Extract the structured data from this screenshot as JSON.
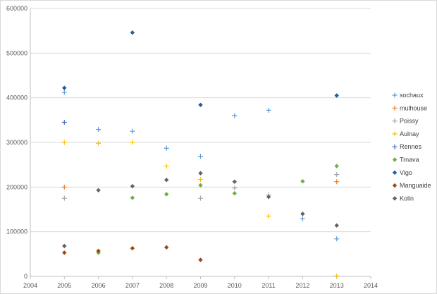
{
  "chart_data": {
    "type": "scatter",
    "title": "",
    "xlabel": "",
    "ylabel": "",
    "xlim": [
      2004,
      2014
    ],
    "ylim": [
      0,
      600000
    ],
    "x_ticks": [
      "2004",
      "2005",
      "2006",
      "2007",
      "2008",
      "2009",
      "2010",
      "2011",
      "2012",
      "2013",
      "2014"
    ],
    "y_ticks": [
      "0",
      "100000",
      "200000",
      "300000",
      "400000",
      "500000",
      "600000"
    ],
    "grid": "horizontal",
    "legend": "right",
    "series": [
      {
        "name": "sochaux",
        "marker": "plus",
        "color": "#5b9bd5",
        "points": [
          [
            2005,
            412000
          ],
          [
            2006,
            329000
          ],
          [
            2007,
            325000
          ],
          [
            2008,
            287000
          ],
          [
            2009,
            269000
          ],
          [
            2010,
            360000
          ],
          [
            2011,
            372000
          ],
          [
            2012,
            129000
          ],
          [
            2013,
            84000
          ]
        ]
      },
      {
        "name": "mulhouse",
        "marker": "plus",
        "color": "#ed7d31",
        "points": [
          [
            2005,
            200000
          ],
          [
            2013,
            212000
          ]
        ]
      },
      {
        "name": "Poissy",
        "marker": "plus",
        "color": "#a5a5a5",
        "points": [
          [
            2005,
            175000
          ],
          [
            2009,
            175000
          ],
          [
            2010,
            198000
          ],
          [
            2011,
            182000
          ],
          [
            2013,
            228000
          ]
        ]
      },
      {
        "name": "Aulnay",
        "marker": "plus",
        "color": "#ffc000",
        "points": [
          [
            2005,
            300000
          ],
          [
            2006,
            298000
          ],
          [
            2007,
            300000
          ],
          [
            2008,
            247000
          ],
          [
            2009,
            217000
          ],
          [
            2011,
            135000
          ],
          [
            2013,
            1000
          ]
        ]
      },
      {
        "name": "Rennes",
        "marker": "plus",
        "color": "#4472c4",
        "points": [
          [
            2005,
            345000
          ]
        ]
      },
      {
        "name": "Trnava",
        "marker": "diamond",
        "color": "#70ad47",
        "points": [
          [
            2006,
            53000
          ],
          [
            2007,
            176000
          ],
          [
            2008,
            184000
          ],
          [
            2009,
            204000
          ],
          [
            2010,
            186000
          ],
          [
            2012,
            213000
          ],
          [
            2013,
            247000
          ]
        ]
      },
      {
        "name": "Vigo",
        "marker": "diamond",
        "color": "#255e91",
        "points": [
          [
            2005,
            422000
          ],
          [
            2007,
            546000
          ],
          [
            2009,
            384000
          ],
          [
            2013,
            405000
          ]
        ]
      },
      {
        "name": "Manguaide",
        "marker": "diamond",
        "color": "#9e480e",
        "points": [
          [
            2005,
            53000
          ],
          [
            2006,
            57000
          ],
          [
            2007,
            63000
          ],
          [
            2008,
            65000
          ],
          [
            2009,
            37000
          ]
        ]
      },
      {
        "name": "Kolin",
        "marker": "diamond",
        "color": "#636363",
        "points": [
          [
            2005,
            68000
          ],
          [
            2006,
            193000
          ],
          [
            2007,
            202000
          ],
          [
            2008,
            216000
          ],
          [
            2009,
            231000
          ],
          [
            2010,
            212000
          ],
          [
            2011,
            178000
          ],
          [
            2012,
            140000
          ],
          [
            2013,
            114000
          ]
        ]
      }
    ]
  }
}
